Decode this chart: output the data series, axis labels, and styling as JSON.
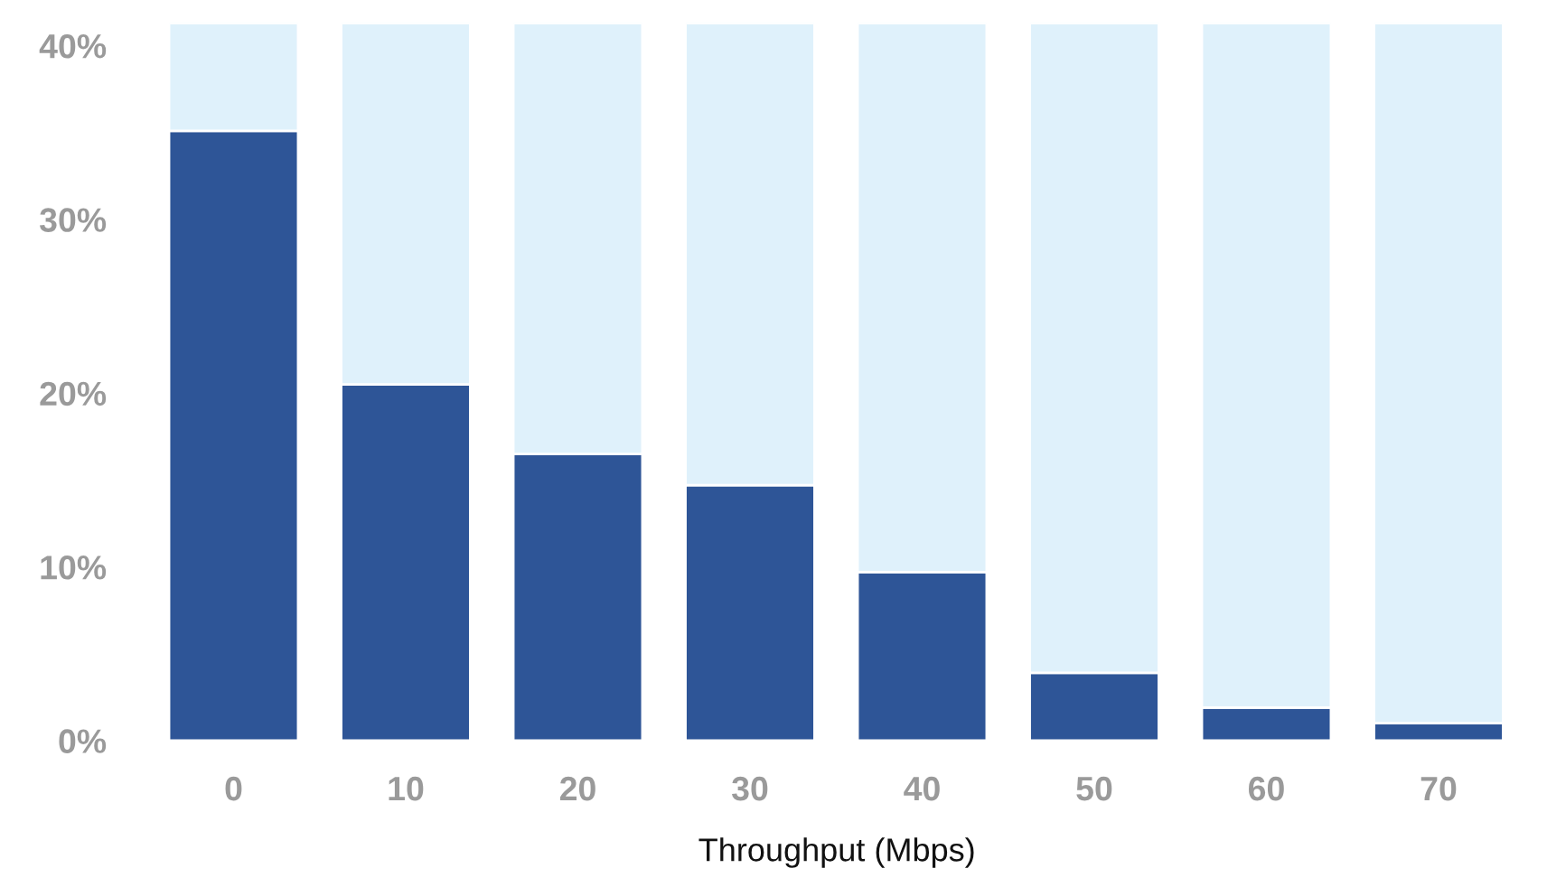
{
  "chart_data": {
    "type": "bar",
    "xlabel": "Throughput (Mbps)",
    "categories": [
      "0",
      "10",
      "20",
      "30",
      "40",
      "50",
      "60",
      "70"
    ],
    "stacked": true,
    "series": [
      {
        "color": "#2e5597",
        "values": [
          35.1,
          20.5,
          16.5,
          14.7,
          9.7,
          3.9,
          1.9,
          1.0
        ]
      },
      {
        "color": "#dff1fb",
        "values": [
          6.2,
          20.8,
          24.8,
          26.6,
          31.6,
          37.4,
          39.4,
          40.3
        ]
      }
    ],
    "ylim": [
      0,
      41.3
    ],
    "yticks": [
      {
        "value": 0,
        "label": "0%"
      },
      {
        "value": 10,
        "label": "10%"
      },
      {
        "value": 20,
        "label": "20%"
      },
      {
        "value": 30,
        "label": "30%"
      },
      {
        "value": 40,
        "label": "40%"
      }
    ],
    "legend": false,
    "grid": false
  }
}
